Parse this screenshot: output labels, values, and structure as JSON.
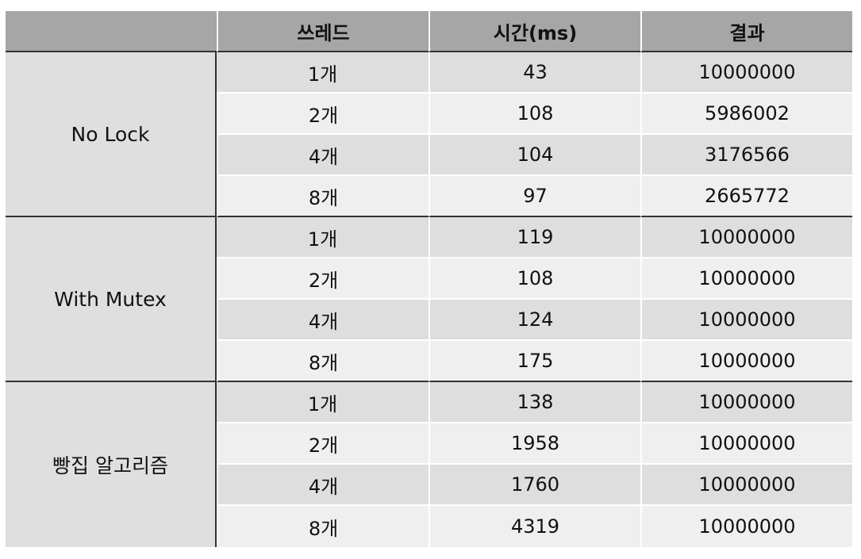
{
  "headers": [
    "",
    "쓰레드",
    "시간(ms)",
    "결과"
  ],
  "groups": [
    {
      "label": "No Lock",
      "rows": [
        {
          "threads": "1개",
          "time": "43",
          "result": "10000000"
        },
        {
          "threads": "2개",
          "time": "108",
          "result": "5986002"
        },
        {
          "threads": "4개",
          "time": "104",
          "result": "3176566"
        },
        {
          "threads": "8개",
          "time": "97",
          "result": "2665772"
        }
      ]
    },
    {
      "label": "With Mutex",
      "rows": [
        {
          "threads": "1개",
          "time": "119",
          "result": "10000000"
        },
        {
          "threads": "2개",
          "time": "108",
          "result": "10000000"
        },
        {
          "threads": "4개",
          "time": "124",
          "result": "10000000"
        },
        {
          "threads": "8개",
          "time": "175",
          "result": "10000000"
        }
      ]
    },
    {
      "label": "빵집 알고리즘",
      "rows": [
        {
          "threads": "1개",
          "time": "138",
          "result": "10000000"
        },
        {
          "threads": "2개",
          "time": "1958",
          "result": "10000000"
        },
        {
          "threads": "4개",
          "time": "1760",
          "result": "10000000"
        },
        {
          "threads": "8개",
          "time": "4319",
          "result": "10000000"
        }
      ]
    }
  ],
  "colors": {
    "header_bg": "#a6a6a6",
    "group_bg": "#dfdfdf",
    "row_dark": "#dedede",
    "row_light": "#efefef",
    "separator": "#333333"
  }
}
